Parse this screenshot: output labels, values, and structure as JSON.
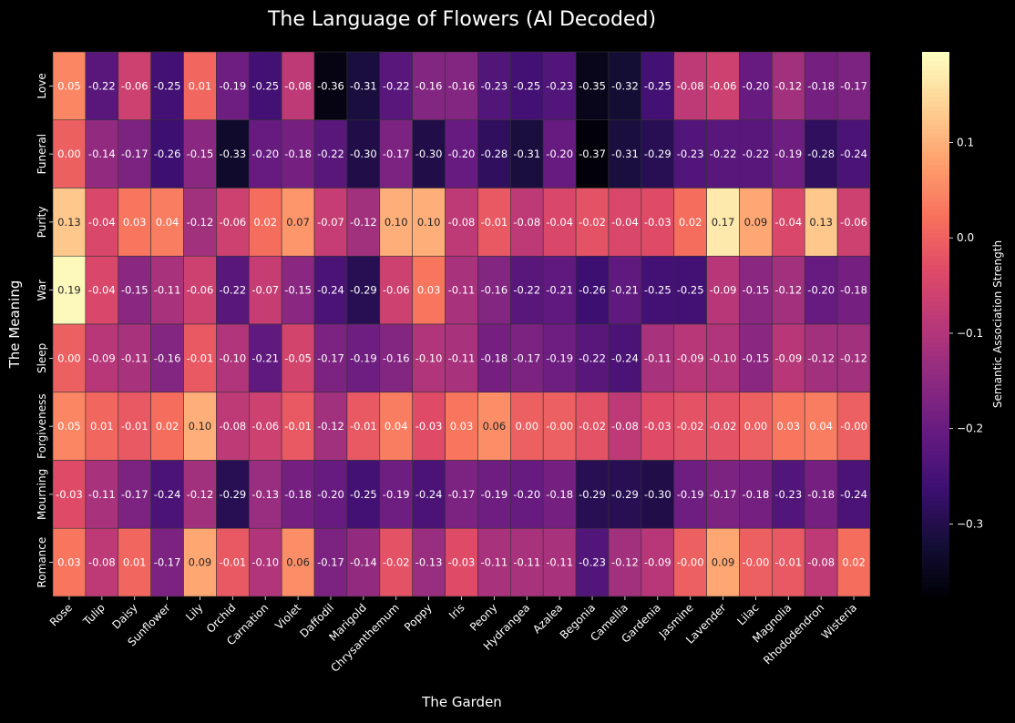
{
  "chart_data": {
    "type": "heatmap",
    "title": "The Language of Flowers (AI Decoded)",
    "xlabel": "The Garden",
    "ylabel": "The Meaning",
    "colorbar_label": "Semantic Association Strength",
    "colormap": "magma",
    "value_range": [
      -0.376,
      0.195
    ],
    "colorbar_ticks": [
      "0.1",
      "0.0",
      "−0.1",
      "−0.2",
      "−0.3"
    ],
    "colorbar_tick_values": [
      0.1,
      0.0,
      -0.1,
      -0.2,
      -0.3
    ],
    "x_categories": [
      "Rose",
      "Tulip",
      "Daisy",
      "Sunflower",
      "Lily",
      "Orchid",
      "Carnation",
      "Violet",
      "Daffodil",
      "Marigold",
      "Chrysanthemum",
      "Poppy",
      "Iris",
      "Peony",
      "Hydrangea",
      "Azalea",
      "Begonia",
      "Camellia",
      "Gardenia",
      "Jasmine",
      "Lavender",
      "Lilac",
      "Magnolia",
      "Rhododendron",
      "Wisteria"
    ],
    "y_categories": [
      "Love",
      "Funeral",
      "Purity",
      "War",
      "Sleep",
      "Forgiveness",
      "Mourning",
      "Romance"
    ],
    "values": [
      [
        0.05,
        -0.22,
        -0.06,
        -0.25,
        0.01,
        -0.19,
        -0.25,
        -0.08,
        -0.36,
        -0.31,
        -0.22,
        -0.16,
        -0.16,
        -0.23,
        -0.25,
        -0.23,
        -0.35,
        -0.32,
        -0.25,
        -0.08,
        -0.06,
        -0.2,
        -0.12,
        -0.18,
        -0.17
      ],
      [
        0.0,
        -0.14,
        -0.17,
        -0.26,
        -0.15,
        -0.33,
        -0.2,
        -0.18,
        -0.22,
        -0.3,
        -0.17,
        -0.3,
        -0.2,
        -0.28,
        -0.31,
        -0.2,
        -0.37,
        -0.31,
        -0.29,
        -0.23,
        -0.22,
        -0.22,
        -0.19,
        -0.28,
        -0.24
      ],
      [
        0.13,
        -0.04,
        0.03,
        0.04,
        -0.12,
        -0.06,
        0.02,
        0.07,
        -0.07,
        -0.12,
        0.1,
        0.1,
        -0.08,
        -0.01,
        -0.08,
        -0.04,
        -0.02,
        -0.04,
        -0.03,
        0.02,
        0.17,
        0.09,
        -0.04,
        0.13,
        -0.06
      ],
      [
        0.19,
        -0.04,
        -0.15,
        -0.11,
        -0.06,
        -0.22,
        -0.07,
        -0.15,
        -0.24,
        -0.29,
        -0.06,
        0.03,
        -0.11,
        -0.16,
        -0.22,
        -0.21,
        -0.26,
        -0.21,
        -0.25,
        -0.25,
        -0.09,
        -0.15,
        -0.12,
        -0.2,
        -0.18
      ],
      [
        0.0,
        -0.09,
        -0.11,
        -0.16,
        -0.01,
        -0.1,
        -0.21,
        -0.05,
        -0.17,
        -0.19,
        -0.16,
        -0.1,
        -0.11,
        -0.18,
        -0.17,
        -0.19,
        -0.22,
        -0.24,
        -0.11,
        -0.09,
        -0.1,
        -0.15,
        -0.09,
        -0.12,
        -0.12
      ],
      [
        0.05,
        0.01,
        -0.01,
        0.02,
        0.1,
        -0.08,
        -0.06,
        -0.01,
        -0.12,
        -0.01,
        0.04,
        -0.03,
        0.03,
        0.06,
        0.0,
        -0.0,
        -0.02,
        -0.08,
        -0.03,
        -0.02,
        -0.02,
        0.0,
        0.03,
        0.04,
        -0.0
      ],
      [
        -0.03,
        -0.11,
        -0.17,
        -0.24,
        -0.12,
        -0.29,
        -0.13,
        -0.18,
        -0.2,
        -0.25,
        -0.19,
        -0.24,
        -0.17,
        -0.19,
        -0.2,
        -0.18,
        -0.29,
        -0.29,
        -0.3,
        -0.19,
        -0.17,
        -0.18,
        -0.23,
        -0.18,
        -0.24
      ],
      [
        0.03,
        -0.08,
        0.01,
        -0.17,
        0.09,
        -0.01,
        -0.1,
        0.06,
        -0.17,
        -0.14,
        -0.02,
        -0.13,
        -0.03,
        -0.11,
        -0.11,
        -0.11,
        -0.23,
        -0.12,
        -0.09,
        -0.0,
        0.09,
        -0.0,
        -0.01,
        -0.08,
        0.02
      ]
    ]
  }
}
